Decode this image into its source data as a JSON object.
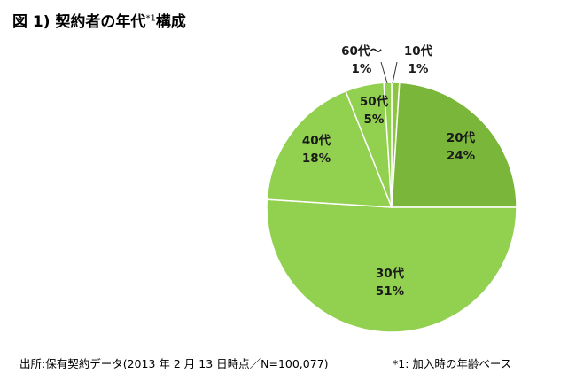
{
  "title": {
    "main": "図 1)  契約者の年代",
    "sup": "*1",
    "suffix": "構成"
  },
  "footer": {
    "source": "出所:保有契約データ(2013 年 2 月 13 日時点／N=100,077)",
    "note": "*1:  加入時の年齢ベース"
  },
  "chart_data": {
    "type": "pie",
    "title": "図 1)  契約者の年代*1構成",
    "start": "12 o'clock, clockwise",
    "slices": [
      {
        "label": "10代",
        "value": 1,
        "value_label": "1%",
        "color": "#8cc540"
      },
      {
        "label": "20代",
        "value": 24,
        "value_label": "24%",
        "color": "#7ab63a"
      },
      {
        "label": "30代",
        "value": 51,
        "value_label": "51%",
        "color": "#92d050"
      },
      {
        "label": "40代",
        "value": 18,
        "value_label": "18%",
        "color": "#92d050"
      },
      {
        "label": "50代",
        "value": 5,
        "value_label": "5%",
        "color": "#92d050"
      },
      {
        "label": "60代～",
        "value": 1,
        "value_label": "1%",
        "color": "#92d050"
      }
    ]
  }
}
